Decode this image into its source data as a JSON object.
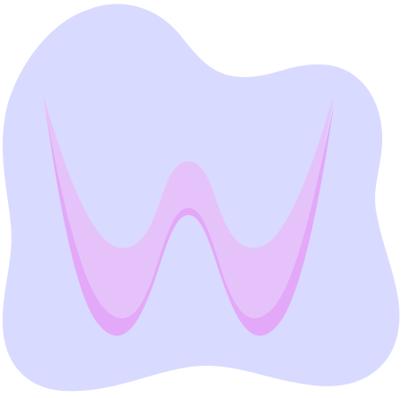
{
  "colors": {
    "background": "#ffffff",
    "blob": "#d9daff",
    "shape_front": "#e6c2fb",
    "shape_back": "#e3a8f8"
  },
  "shapes": {
    "blob": "rounded-lavender-blob",
    "letter": "w-shaped-ribbon"
  }
}
